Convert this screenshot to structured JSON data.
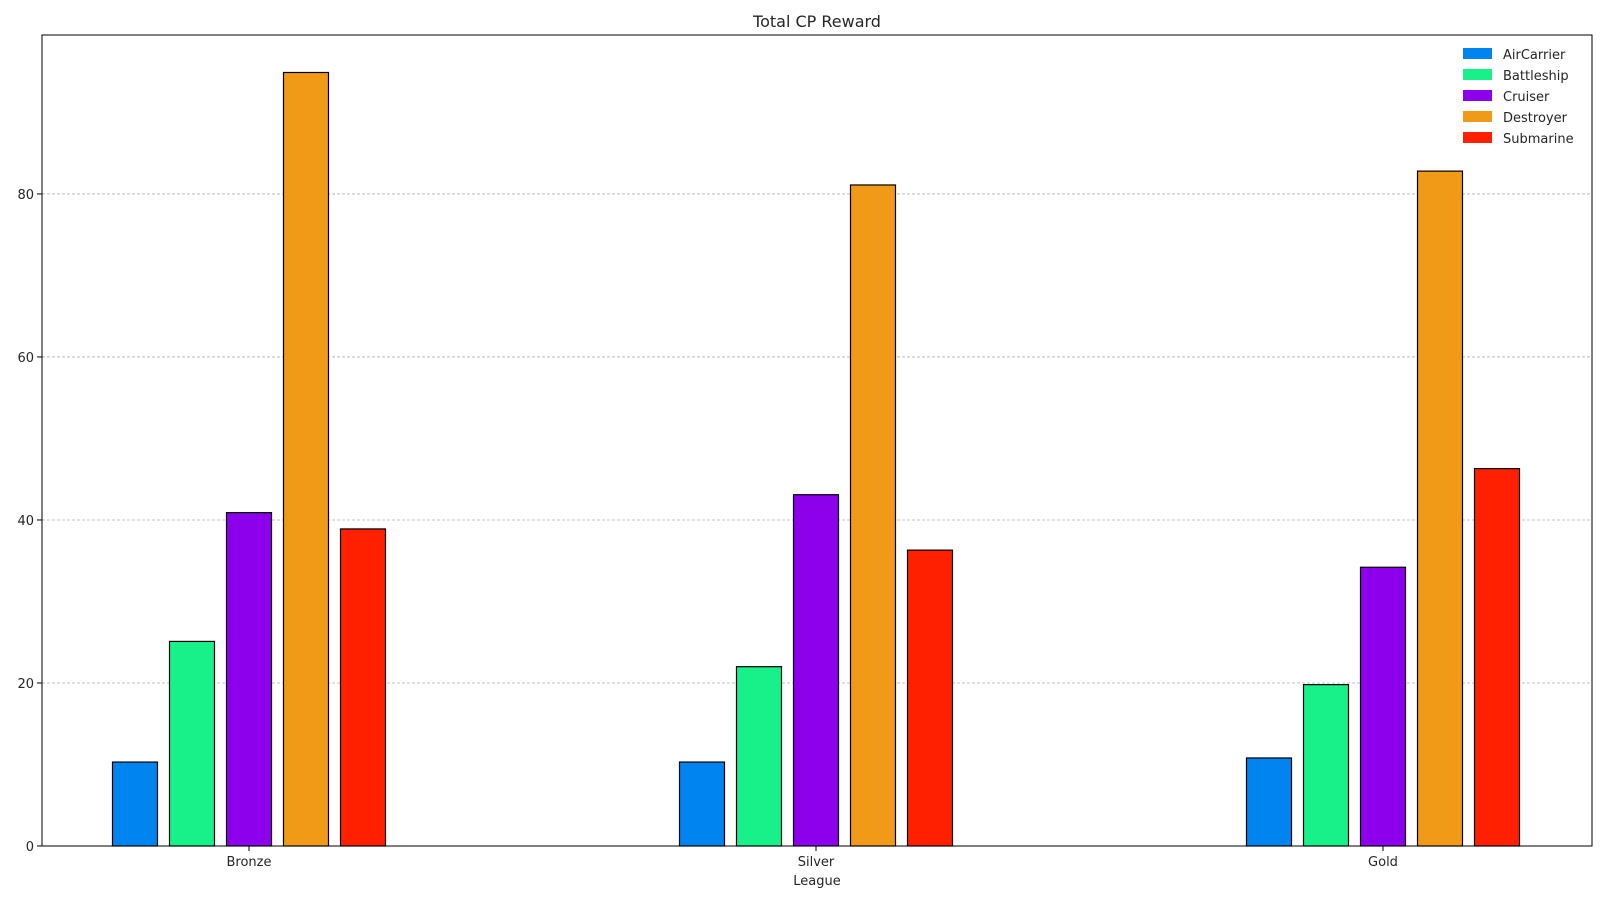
{
  "chart_data": {
    "type": "bar",
    "title": "Total CP Reward",
    "xlabel": "League",
    "ylabel": "",
    "categories": [
      "Bronze",
      "Silver",
      "Gold"
    ],
    "series": [
      {
        "name": "AirCarrier",
        "color": "#0084f0",
        "values": [
          10.3,
          10.3,
          10.8
        ]
      },
      {
        "name": "Battleship",
        "color": "#18f08a",
        "values": [
          25.1,
          22.0,
          19.8
        ]
      },
      {
        "name": "Cruiser",
        "color": "#8c00ec",
        "values": [
          40.9,
          43.1,
          34.2
        ]
      },
      {
        "name": "Destroyer",
        "color": "#f09a18",
        "values": [
          94.9,
          81.1,
          82.8
        ]
      },
      {
        "name": "Submarine",
        "color": "#ff2000",
        "values": [
          38.9,
          36.3,
          46.3
        ]
      }
    ],
    "ylim": [
      0,
      99.5
    ],
    "yticks": [
      0,
      20,
      40,
      60,
      80
    ],
    "grid": true,
    "grid_axis": "y",
    "legend_position": "top-right"
  }
}
